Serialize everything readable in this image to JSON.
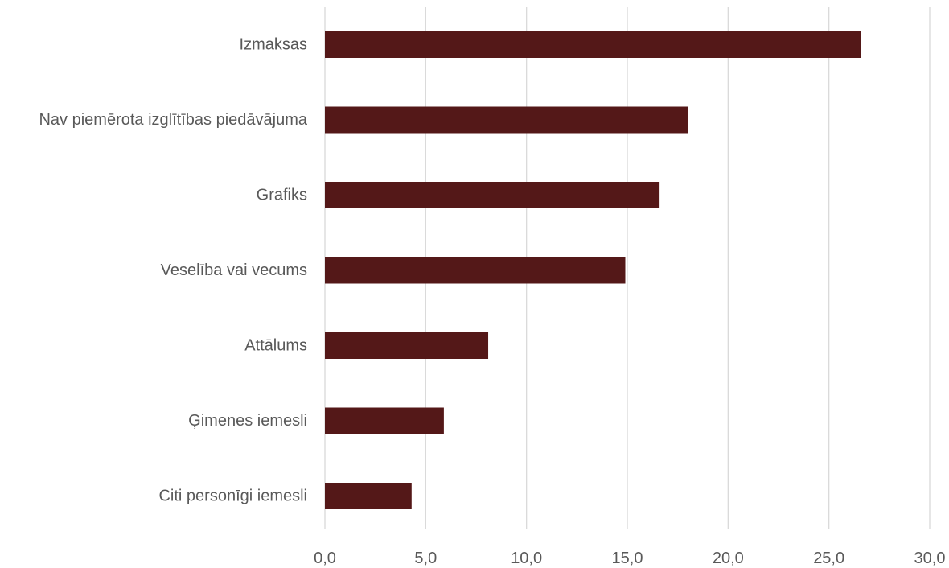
{
  "chart_data": {
    "type": "bar",
    "orientation": "horizontal",
    "categories": [
      "Izmaksas",
      "Nav piemērota izglītības piedāvājuma",
      "Grafiks",
      "Veselība vai vecums",
      "Attālums",
      "Ģimenes iemesli",
      "Citi personīgi iemesli"
    ],
    "values": [
      26.6,
      18.0,
      16.6,
      14.9,
      8.1,
      5.9,
      4.3
    ],
    "xlim": [
      0,
      30
    ],
    "x_ticks": [
      0,
      5,
      10,
      15,
      20,
      25,
      30
    ],
    "x_tick_labels": [
      "0,0",
      "5,0",
      "10,0",
      "15,0",
      "20,0",
      "25,0",
      "30,0"
    ],
    "bar_color": "#541818",
    "grid_color": "#d9d9d9",
    "label_color": "#595959",
    "grid": "vertical",
    "title": "",
    "xlabel": "",
    "ylabel": ""
  }
}
